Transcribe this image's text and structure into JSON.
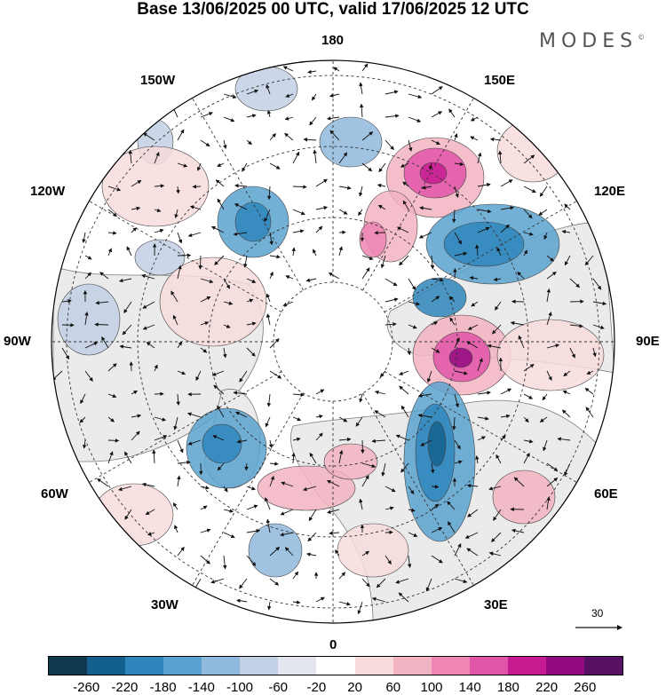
{
  "title": "Base 13/06/2025 00 UTC, valid 17/06/2025 12 UTC",
  "brand": {
    "text": "MODES",
    "mark": "©"
  },
  "longitude_labels": {
    "n180": "180",
    "e150": "150E",
    "e120": "120E",
    "e90": "90E",
    "e60": "60E",
    "e30": "30E",
    "zero": "0",
    "w30": "30W",
    "w60": "60W",
    "w90": "90W",
    "w120": "120W",
    "w150": "150W"
  },
  "colorbar": {
    "colors": [
      "#10384f",
      "#14608d",
      "#2f86bc",
      "#5aa2cf",
      "#8fb9dd",
      "#c2cfe4",
      "#e4e6ef",
      "#ffffff",
      "#f8dbdc",
      "#f2b3c2",
      "#ee85b3",
      "#e055a8",
      "#c71b92",
      "#920a80",
      "#571064"
    ],
    "labels": [
      "-260",
      "-220",
      "-180",
      "-140",
      "-100",
      "-60",
      "-20",
      "20",
      "60",
      "100",
      "140",
      "180",
      "220",
      "260"
    ]
  },
  "vector_reference": "30"
}
